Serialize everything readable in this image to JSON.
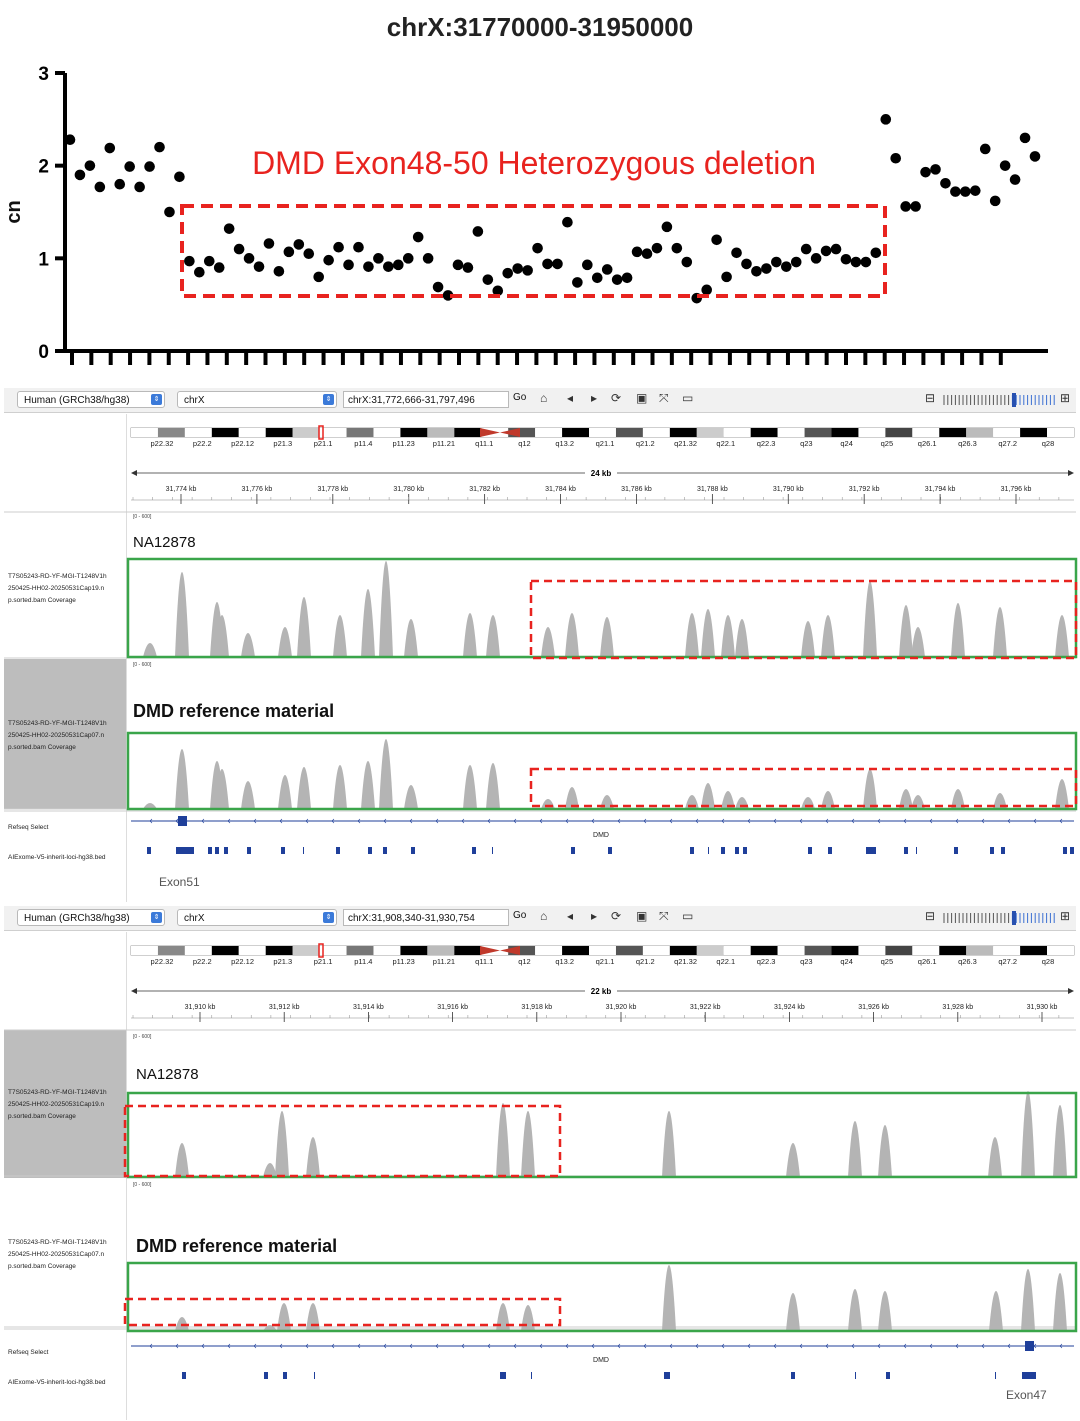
{
  "chart_data": {
    "type": "scatter",
    "title": "chrX:31770000-31950000",
    "ylabel": "cn",
    "ylim": [
      0,
      3
    ],
    "yticks": [
      "0",
      "1",
      "2",
      "3"
    ],
    "annotation": "DMD Exon48-50 Heterozygous  deletion",
    "annotation_color": "#e8231f",
    "points": [
      2.28,
      1.9,
      2.0,
      1.77,
      2.19,
      1.8,
      1.99,
      1.77,
      1.99,
      2.2,
      1.5,
      1.88,
      0.97,
      0.85,
      0.97,
      0.9,
      1.32,
      1.1,
      1.0,
      0.91,
      1.16,
      0.86,
      1.07,
      1.15,
      1.05,
      0.8,
      0.98,
      1.12,
      0.93,
      1.12,
      0.91,
      1.0,
      0.91,
      0.93,
      1.0,
      1.23,
      1.0,
      0.69,
      0.6,
      0.93,
      0.9,
      1.29,
      0.77,
      0.65,
      0.84,
      0.89,
      0.87,
      1.11,
      0.94,
      0.94,
      1.39,
      0.74,
      0.93,
      0.79,
      0.88,
      0.77,
      0.79,
      1.07,
      1.05,
      1.11,
      1.34,
      1.11,
      0.96,
      0.57,
      0.66,
      1.2,
      0.8,
      1.06,
      0.94,
      0.86,
      0.89,
      0.96,
      0.91,
      0.96,
      1.1,
      1.0,
      1.08,
      1.1,
      0.99,
      0.96,
      0.96,
      1.06,
      2.5,
      2.08,
      1.56,
      1.56,
      1.93,
      1.96,
      1.81,
      1.72,
      1.72,
      1.73,
      2.18,
      1.62,
      2.0,
      1.85,
      2.3,
      2.1
    ]
  },
  "igv_panels": [
    {
      "genome": "Human (GRCh38/hg38)",
      "chromosome": "chrX",
      "locus": "chrX:31,772,666-31,797,496",
      "go_label": "Go",
      "bands": [
        "p22.32",
        "p22.2",
        "p22.12",
        "p21.3",
        "p21.1",
        "p11.4",
        "p11.23",
        "p11.21",
        "q11.1",
        "q12",
        "q13.2",
        "q21.1",
        "q21.2",
        "q21.32",
        "q22.1",
        "q22.3",
        "q23",
        "q24",
        "q25",
        "q26.1",
        "q26.3",
        "q27.2",
        "q28"
      ],
      "span": "24 kb",
      "ruler_ticks": [
        "31,774 kb",
        "31,776 kb",
        "31,778 kb",
        "31,780 kb",
        "31,782 kb",
        "31,784 kb",
        "31,786 kb",
        "31,788 kb",
        "31,790 kb",
        "31,792 kb",
        "31,794 kb",
        "31,796 kb"
      ],
      "tracks": [
        {
          "sample": "NA12878",
          "range": "[0 - 600]",
          "label_lines": [
            "T7S05243-RD-YF-MGI-T1248V1h",
            "250425-HH02-20250531Cap19.n",
            "p.sorted.bam Coverage"
          ]
        },
        {
          "sample": "DMD reference material",
          "range": "[0 - 600]",
          "label_lines": [
            "T7S05243-RD-YF-MGI-T1248V1h",
            "250425-HH02-20250531Cap07.n",
            "p.sorted.bam Coverage"
          ]
        }
      ],
      "refseq_label": "Refseq Select",
      "bed_label": "AIExome-V5-inherit-loci-hg38.bed",
      "gene": "DMD",
      "exon_label": "Exon51"
    },
    {
      "genome": "Human (GRCh38/hg38)",
      "chromosome": "chrX",
      "locus": "chrX:31,908,340-31,930,754",
      "go_label": "Go",
      "bands": [
        "p22.32",
        "p22.2",
        "p22.12",
        "p21.3",
        "p21.1",
        "p11.4",
        "p11.23",
        "p11.21",
        "q11.1",
        "q12",
        "q13.2",
        "q21.1",
        "q21.2",
        "q21.32",
        "q22.1",
        "q22.3",
        "q23",
        "q24",
        "q25",
        "q26.1",
        "q26.3",
        "q27.2",
        "q28"
      ],
      "span": "22 kb",
      "ruler_ticks": [
        "31,910 kb",
        "31,912 kb",
        "31,914 kb",
        "31,916 kb",
        "31,918 kb",
        "31,920 kb",
        "31,922 kb",
        "31,924 kb",
        "31,926 kb",
        "31,928 kb",
        "31,930 kb"
      ],
      "tracks": [
        {
          "sample": "NA12878",
          "range": "[0 - 600]",
          "label_lines": [
            "T7S05243-RD-YF-MGI-T1248V1h",
            "250425-HH02-20250531Cap19.n",
            "p.sorted.bam Coverage"
          ]
        },
        {
          "sample": "DMD reference material",
          "range": "[0 - 600]",
          "label_lines": [
            "T7S05243-RD-YF-MGI-T1248V1h",
            "250425-HH02-20250531Cap07.n",
            "p.sorted.bam Coverage"
          ]
        }
      ],
      "refseq_label": "Refseq Select",
      "bed_label": "AIExome-V5-inherit-loci-hg38.bed",
      "gene": "DMD",
      "exon_label": "Exon47"
    }
  ],
  "colors": {
    "highlight_green": "#3aa54a",
    "deletion_red": "#e8231f",
    "coverage_gray": "#b4b4b4",
    "feature_blue": "#1f3f9a"
  },
  "icons": [
    "home-icon",
    "back-arrow-icon",
    "forward-arrow-icon",
    "refresh-icon",
    "region-icon",
    "resize-icon",
    "popup-text-icon",
    "zoom-out-icon",
    "zoom-in-icon"
  ]
}
